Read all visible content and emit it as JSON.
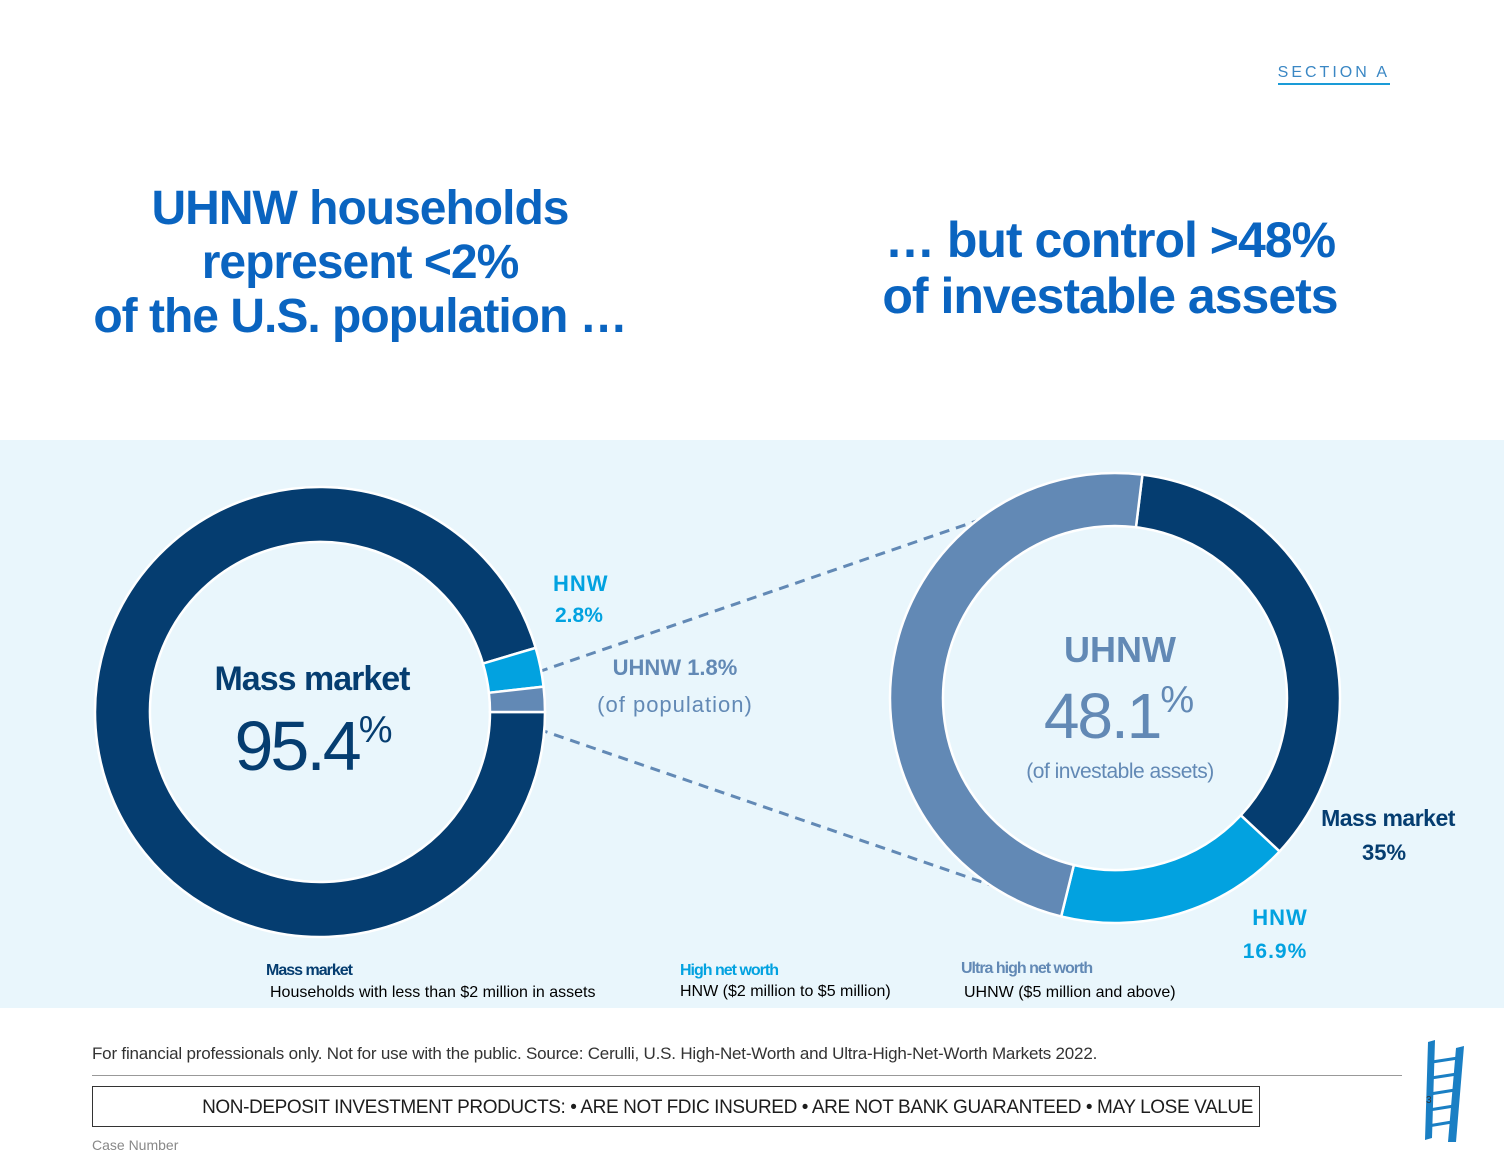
{
  "section_label": "SECTION A",
  "headline_left": [
    "UHNW households",
    "represent <2%",
    "of the U.S. population …"
  ],
  "headline_right": [
    "… but control >48%",
    "of investable assets"
  ],
  "colors": {
    "mass_market": "#053d70",
    "hnw": "#02a2e0",
    "uhnw": "#6289b5",
    "headline": "#0a64c0",
    "band": "#e9f6fc"
  },
  "chart_data": [
    {
      "type": "pie",
      "title": "",
      "series": [
        {
          "name": "Mass market",
          "value": 95.4,
          "color": "#053d70"
        },
        {
          "name": "HNW",
          "value": 2.8,
          "color": "#02a2e0"
        },
        {
          "name": "UHNW",
          "value": 1.8,
          "color": "#6289b5"
        }
      ],
      "labels": {
        "center_name": "Mass market",
        "center_value": "95.4",
        "center_unit": "%",
        "hnw_name": "HNW",
        "hnw_value": "2.8%",
        "uhnw_value": "UHNW 1.8%",
        "uhnw_note": "(of population)"
      }
    },
    {
      "type": "pie",
      "title": "",
      "series": [
        {
          "name": "Mass market",
          "value": 35,
          "color": "#053d70"
        },
        {
          "name": "HNW",
          "value": 16.9,
          "color": "#02a2e0"
        },
        {
          "name": "UHNW",
          "value": 48.1,
          "color": "#6289b5"
        }
      ],
      "labels": {
        "center_name": "UHNW",
        "center_value": "48.1",
        "center_unit": "%",
        "center_note": "(of investable assets)",
        "mass_name": "Mass market",
        "mass_value": "35%",
        "hnw_name": "HNW",
        "hnw_value": "16.9%"
      }
    }
  ],
  "definitions": [
    {
      "title": "Mass market",
      "desc": "Households with less than $2 million in assets",
      "color": "#053d70"
    },
    {
      "title": "High net worth",
      "desc": "HNW ($2 million to $5 million)",
      "color": "#02a2e0"
    },
    {
      "title": "Ultra high net worth",
      "desc": "UHNW ($5 million and above)",
      "color": "#6289b5"
    }
  ],
  "footnote": "For financial professionals only. Not for use with the public. Source: Cerulli, U.S. High-Net-Worth and Ultra-High-Net-Worth Markets 2022.",
  "disclosure": "NON-DEPOSIT INVESTMENT PRODUCTS: • ARE NOT FDIC INSURED • ARE NOT BANK GUARANTEED • MAY LOSE VALUE",
  "case_number": "Case Number",
  "page_number": "3"
}
